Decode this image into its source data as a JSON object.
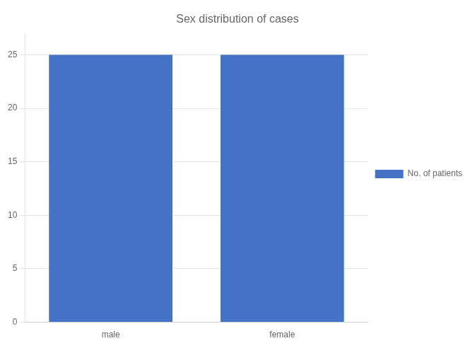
{
  "chart_data": {
    "type": "bar",
    "title": "Sex distribution of cases",
    "categories": [
      "male",
      "female"
    ],
    "series": [
      {
        "name": "No. of patients",
        "color": "#4472C4",
        "values": [
          25,
          25
        ]
      }
    ],
    "ylim": [
      0,
      27
    ],
    "yticks": [
      0,
      5,
      10,
      15,
      20,
      25
    ],
    "grid": true,
    "legend": "right"
  }
}
